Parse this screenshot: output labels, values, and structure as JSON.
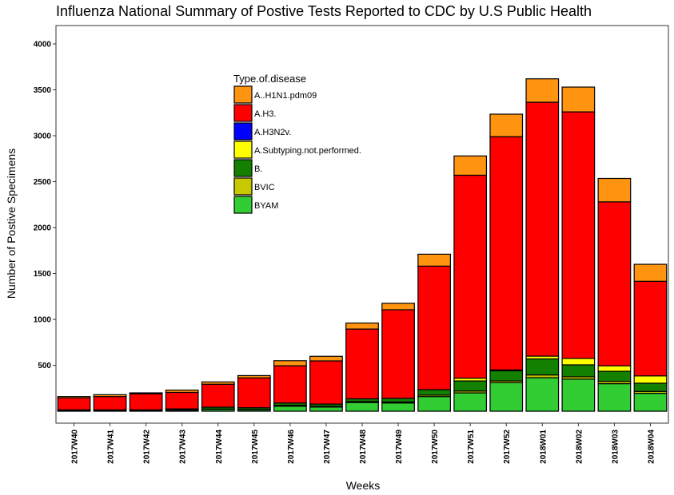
{
  "chart_data": {
    "type": "bar",
    "stacked": true,
    "title": "Influenza National Summary of Postive Tests Reported to CDC by U.S Public Health",
    "xlabel": "Weeks",
    "ylabel": "Number of Postive Specimens",
    "ylim": [
      -130,
      4200
    ],
    "yticks": [
      500,
      1000,
      1500,
      2000,
      2500,
      3000,
      3500,
      4000
    ],
    "categories": [
      "2017W40",
      "2017W41",
      "2017W42",
      "2017W43",
      "2017W44",
      "2017W45",
      "2017W46",
      "2017W47",
      "2017W48",
      "2017W49",
      "2017W50",
      "2017W51",
      "2017W52",
      "2018W01",
      "2018W02",
      "2018W03",
      "2018W04"
    ],
    "legend": {
      "title": "Type.of.disease",
      "position": "inside-top-center"
    },
    "grid": false,
    "series": [
      {
        "name": "BYAM",
        "color": "#32cd32",
        "values": [
          8,
          8,
          8,
          12,
          20,
          15,
          55,
          45,
          95,
          90,
          160,
          200,
          310,
          365,
          350,
          300,
          195
        ]
      },
      {
        "name": "BVIC",
        "color": "#c8c800",
        "values": [
          2,
          2,
          2,
          3,
          4,
          3,
          10,
          8,
          10,
          10,
          15,
          20,
          20,
          30,
          25,
          25,
          20
        ]
      },
      {
        "name": "B.",
        "color": "#138000",
        "values": [
          5,
          5,
          5,
          10,
          20,
          20,
          25,
          25,
          30,
          40,
          60,
          110,
          110,
          175,
          130,
          110,
          90
        ]
      },
      {
        "name": "A.Subtyping.not.performed.",
        "color": "#ffff00",
        "values": [
          0,
          0,
          0,
          0,
          0,
          0,
          0,
          0,
          0,
          0,
          0,
          30,
          10,
          30,
          70,
          60,
          80
        ]
      },
      {
        "name": "A.H3N2v.",
        "color": "#0000ff",
        "values": [
          0,
          0,
          0,
          0,
          0,
          0,
          0,
          0,
          0,
          0,
          0,
          0,
          0,
          0,
          0,
          0,
          0
        ]
      },
      {
        "name": "A.H3.",
        "color": "#ff0000",
        "values": [
          130,
          145,
          175,
          180,
          250,
          325,
          405,
          470,
          760,
          965,
          1345,
          2210,
          2540,
          2765,
          2685,
          1785,
          1030
        ]
      },
      {
        "name": "A..H1N1.pdm09",
        "color": "#ff9410",
        "values": [
          15,
          20,
          10,
          25,
          25,
          25,
          55,
          50,
          65,
          70,
          130,
          210,
          245,
          255,
          270,
          255,
          185
        ]
      }
    ]
  }
}
